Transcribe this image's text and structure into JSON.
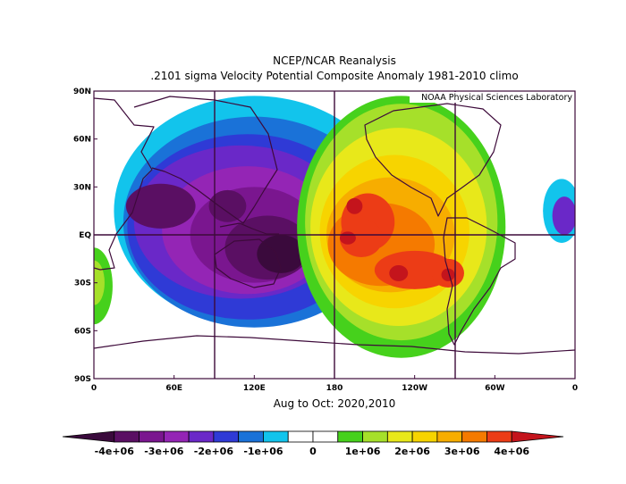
{
  "title_line1": "NCEP/NCAR Reanalysis",
  "title_line2": ".2101 sigma Velocity Potential  Composite Anomaly 1981-2010 climo",
  "subtitle": "Aug to Oct: 2020,2010",
  "credit": "NOAA Physical Sciences Laboratory",
  "colors": {
    "levels": [
      "#3a0a3c",
      "#5a0f63",
      "#7a168f",
      "#9425b5",
      "#6a28c8",
      "#2f3ad6",
      "#1a72d8",
      "#12c4ec",
      "#ffffff",
      "#ffffff",
      "#46d11c",
      "#a6e02a",
      "#e8e81a",
      "#f7d400",
      "#f7ad00",
      "#f57a00",
      "#ec3c16",
      "#c4141c"
    ],
    "outline": "#3d0a3a"
  },
  "chart_data": {
    "type": "heatmap",
    "variable": "Velocity Potential anomaly, .2101 sigma",
    "period": "Aug to Oct: 2020,2010",
    "x_ticks": [
      "0",
      "60E",
      "120E",
      "180",
      "120W",
      "60W",
      "0"
    ],
    "y_ticks": [
      "90N",
      "60N",
      "30N",
      "EQ",
      "30S",
      "60S",
      "90S"
    ],
    "xlim": [
      0,
      360
    ],
    "ylim": [
      -90,
      90
    ],
    "grid_lines_lon": [
      60,
      180,
      270
    ],
    "grid_lines_lat": [
      0
    ],
    "colorbar_labels": [
      "-4e+06",
      "-3e+06",
      "-2e+06",
      "-1e+06",
      "0",
      "1e+06",
      "2e+06",
      "3e+06",
      "4e+06"
    ],
    "colorbar_levels": [
      -4000000,
      -3500000,
      -3000000,
      -2500000,
      -2000000,
      -1500000,
      -1000000,
      -500000,
      0,
      500000,
      1000000,
      1500000,
      2000000,
      2500000,
      3000000,
      3500000,
      4000000
    ],
    "features": [
      {
        "sign": "negative",
        "center_lon": 135,
        "center_lat": -10,
        "peak": -4000000
      },
      {
        "sign": "negative",
        "center_lon": 45,
        "center_lat": 15,
        "peak": -3500000
      },
      {
        "sign": "positive",
        "center_lon": 190,
        "center_lat": -2,
        "peak": 4000000
      },
      {
        "sign": "positive",
        "center_lon": 195,
        "center_lat": 17,
        "peak": 4000000
      },
      {
        "sign": "positive",
        "center_lon": 225,
        "center_lat": -25,
        "peak": 4000000
      },
      {
        "sign": "positive",
        "center_lon": 268,
        "center_lat": -25,
        "peak": 4000000
      }
    ]
  }
}
